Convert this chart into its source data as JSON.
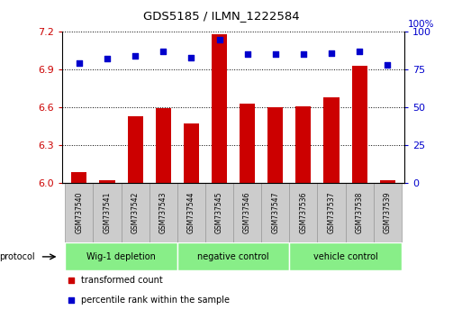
{
  "title": "GDS5185 / ILMN_1222584",
  "samples": [
    "GSM737540",
    "GSM737541",
    "GSM737542",
    "GSM737543",
    "GSM737544",
    "GSM737545",
    "GSM737546",
    "GSM737547",
    "GSM737536",
    "GSM737537",
    "GSM737538",
    "GSM737539"
  ],
  "bar_values": [
    6.08,
    6.02,
    6.53,
    6.59,
    6.47,
    7.18,
    6.63,
    6.6,
    6.61,
    6.68,
    6.93,
    6.02
  ],
  "dot_values": [
    79,
    82,
    84,
    87,
    83,
    95,
    85,
    85,
    85,
    86,
    87,
    78
  ],
  "ylim_left": [
    6.0,
    7.2
  ],
  "ylim_right": [
    0,
    100
  ],
  "yticks_left": [
    6.0,
    6.3,
    6.6,
    6.9,
    7.2
  ],
  "yticks_right": [
    0,
    25,
    50,
    75,
    100
  ],
  "bar_color": "#cc0000",
  "dot_color": "#0000cc",
  "groups": [
    {
      "label": "Wig-1 depletion",
      "indices": [
        0,
        1,
        2,
        3
      ]
    },
    {
      "label": "negative control",
      "indices": [
        4,
        5,
        6,
        7
      ]
    },
    {
      "label": "vehicle control",
      "indices": [
        8,
        9,
        10,
        11
      ]
    }
  ],
  "group_color": "#88ee88",
  "tick_label_color_left": "#cc0000",
  "tick_label_color_right": "#0000cc",
  "sample_bg_color": "#cccccc",
  "sample_border_color": "#999999"
}
